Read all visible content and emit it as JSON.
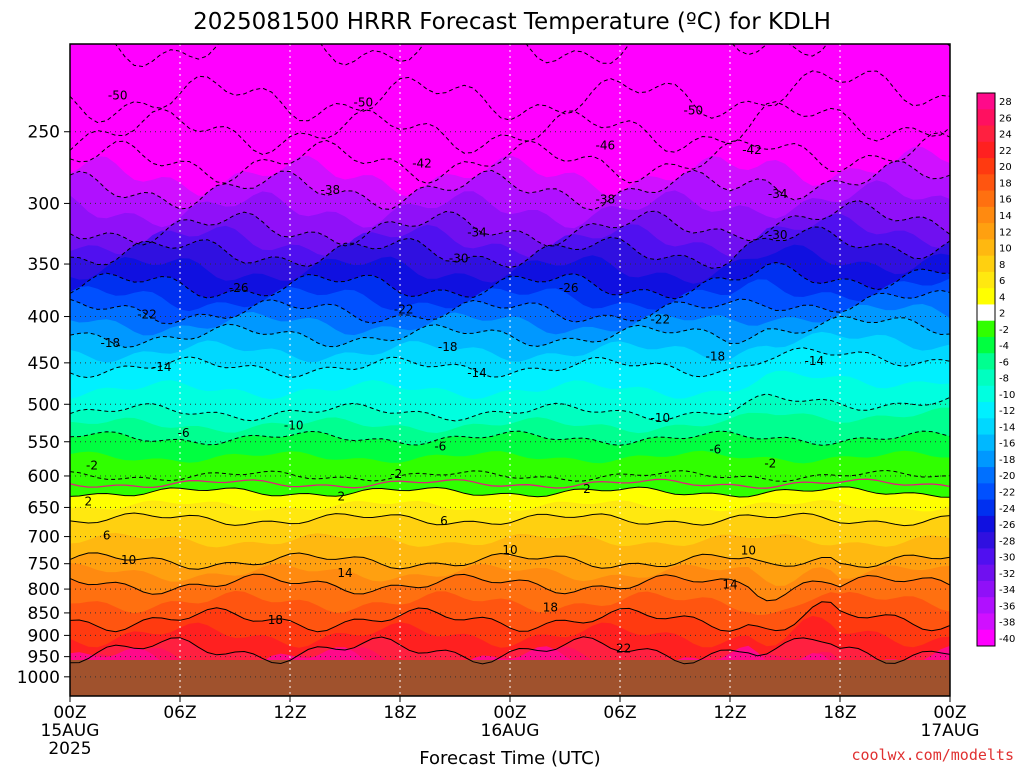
{
  "chart_data": {
    "type": "heatmap",
    "title": "2025081500 HRRR Forecast Temperature (ºC) for KDLH",
    "xlabel": "Forecast Time (UTC)",
    "x_ticks": [
      {
        "hour": 0,
        "label": "00Z",
        "sub1": "15AUG",
        "sub2": "2025"
      },
      {
        "hour": 6,
        "label": "06Z"
      },
      {
        "hour": 12,
        "label": "12Z"
      },
      {
        "hour": 18,
        "label": "18Z"
      },
      {
        "hour": 24,
        "label": "00Z",
        "sub1": "16AUG"
      },
      {
        "hour": 30,
        "label": "06Z"
      },
      {
        "hour": 36,
        "label": "12Z"
      },
      {
        "hour": 42,
        "label": "18Z"
      },
      {
        "hour": 48,
        "label": "00Z",
        "sub1": "17AUG"
      }
    ],
    "y_ticks": [
      "250",
      "300",
      "350",
      "400",
      "450",
      "500",
      "550",
      "600",
      "650",
      "700",
      "750",
      "800",
      "850",
      "900",
      "950",
      "1000"
    ],
    "y_tick_values": [
      250,
      300,
      350,
      400,
      450,
      500,
      550,
      600,
      650,
      700,
      750,
      800,
      850,
      900,
      950,
      1000
    ],
    "xlim": [
      0,
      48
    ],
    "ylim": [
      1050,
      200
    ],
    "log_y": true,
    "colorbar": {
      "levels": [
        28,
        26,
        24,
        22,
        20,
        18,
        16,
        14,
        12,
        10,
        8,
        6,
        4,
        2,
        -2,
        -4,
        -6,
        -8,
        -10,
        -12,
        -14,
        -16,
        -18,
        -20,
        -22,
        -24,
        -26,
        -28,
        -30,
        -32,
        -34,
        -36,
        -38,
        -40
      ],
      "colors": [
        "#ff0a8a",
        "#ff1060",
        "#ff2040",
        "#ff2020",
        "#ff3a10",
        "#ff5510",
        "#ff7010",
        "#ff8a10",
        "#ffa010",
        "#ffb810",
        "#ffd010",
        "#ffe810",
        "#ffff00",
        "#ffffff",
        "#30ff00",
        "#00ff40",
        "#00ff90",
        "#00ffc0",
        "#00ffe0",
        "#00f0ff",
        "#00d8ff",
        "#00b8ff",
        "#0098ff",
        "#0070ff",
        "#0050ff",
        "#0030f0",
        "#1010e0",
        "#3010e0",
        "#5010f0",
        "#7010f0",
        "#9010f8",
        "#b010ff",
        "#d010ff",
        "#ff00ff"
      ]
    },
    "profile": [
      {
        "p": 200,
        "t": -54
      },
      {
        "p": 230,
        "t": -50
      },
      {
        "p": 250,
        "t": -46
      },
      {
        "p": 270,
        "t": -42
      },
      {
        "p": 290,
        "t": -38
      },
      {
        "p": 320,
        "t": -34
      },
      {
        "p": 340,
        "t": -30
      },
      {
        "p": 370,
        "t": -26
      },
      {
        "p": 395,
        "t": -22
      },
      {
        "p": 420,
        "t": -18
      },
      {
        "p": 455,
        "t": -14
      },
      {
        "p": 510,
        "t": -10
      },
      {
        "p": 545,
        "t": -6
      },
      {
        "p": 600,
        "t": -2
      },
      {
        "p": 612,
        "t": 0
      },
      {
        "p": 625,
        "t": 2
      },
      {
        "p": 670,
        "t": 6
      },
      {
        "p": 745,
        "t": 10
      },
      {
        "p": 790,
        "t": 14
      },
      {
        "p": 865,
        "t": 18
      },
      {
        "p": 935,
        "t": 22
      },
      {
        "p": 960,
        "t": 24
      }
    ],
    "contour_labels": [
      {
        "hour": 2.6,
        "p": 228,
        "text": "-50"
      },
      {
        "hour": 16.0,
        "p": 232,
        "text": "-50"
      },
      {
        "hour": 34.0,
        "p": 237,
        "text": "-50"
      },
      {
        "hour": 29.2,
        "p": 259,
        "text": "-46"
      },
      {
        "hour": 19.2,
        "p": 271,
        "text": "-42"
      },
      {
        "hour": 37.2,
        "p": 262,
        "text": "-42"
      },
      {
        "hour": 14.2,
        "p": 290,
        "text": "-38"
      },
      {
        "hour": 29.2,
        "p": 297,
        "text": "-38"
      },
      {
        "hour": 38.6,
        "p": 293,
        "text": "-34"
      },
      {
        "hour": 22.2,
        "p": 323,
        "text": "-34"
      },
      {
        "hour": 38.6,
        "p": 325,
        "text": "-30"
      },
      {
        "hour": 21.2,
        "p": 345,
        "text": "-30"
      },
      {
        "hour": 9.2,
        "p": 372,
        "text": "-26"
      },
      {
        "hour": 27.2,
        "p": 372,
        "text": "-26"
      },
      {
        "hour": 4.2,
        "p": 398,
        "text": "-22"
      },
      {
        "hour": 18.2,
        "p": 393,
        "text": "-22"
      },
      {
        "hour": 32.2,
        "p": 403,
        "text": "-22"
      },
      {
        "hour": 2.2,
        "p": 428,
        "text": "-18"
      },
      {
        "hour": 20.6,
        "p": 432,
        "text": "-18"
      },
      {
        "hour": 35.2,
        "p": 443,
        "text": "-18"
      },
      {
        "hour": 5.0,
        "p": 455,
        "text": "-14"
      },
      {
        "hour": 22.2,
        "p": 462,
        "text": "-14"
      },
      {
        "hour": 40.6,
        "p": 448,
        "text": "-14"
      },
      {
        "hour": 12.2,
        "p": 528,
        "text": "-10"
      },
      {
        "hour": 32.2,
        "p": 518,
        "text": "-10"
      },
      {
        "hour": 6.2,
        "p": 538,
        "text": "-6"
      },
      {
        "hour": 20.2,
        "p": 557,
        "text": "-6"
      },
      {
        "hour": 35.2,
        "p": 561,
        "text": "-6"
      },
      {
        "hour": 1.2,
        "p": 584,
        "text": "-2"
      },
      {
        "hour": 17.8,
        "p": 597,
        "text": "-2"
      },
      {
        "hour": 38.2,
        "p": 581,
        "text": "-2"
      },
      {
        "hour": 1.0,
        "p": 640,
        "text": "2"
      },
      {
        "hour": 14.8,
        "p": 632,
        "text": "2"
      },
      {
        "hour": 28.2,
        "p": 620,
        "text": "2"
      },
      {
        "hour": 2.0,
        "p": 698,
        "text": "6"
      },
      {
        "hour": 20.4,
        "p": 673,
        "text": "6"
      },
      {
        "hour": 3.2,
        "p": 743,
        "text": "10"
      },
      {
        "hour": 24.0,
        "p": 724,
        "text": "10"
      },
      {
        "hour": 37.0,
        "p": 725,
        "text": "10"
      },
      {
        "hour": 15.0,
        "p": 768,
        "text": "14"
      },
      {
        "hour": 36.0,
        "p": 791,
        "text": "14"
      },
      {
        "hour": 11.2,
        "p": 866,
        "text": "18"
      },
      {
        "hour": 26.2,
        "p": 838,
        "text": "18"
      },
      {
        "hour": 30.2,
        "p": 930,
        "text": "22"
      }
    ]
  },
  "credit": "coolwx.com/modelts"
}
